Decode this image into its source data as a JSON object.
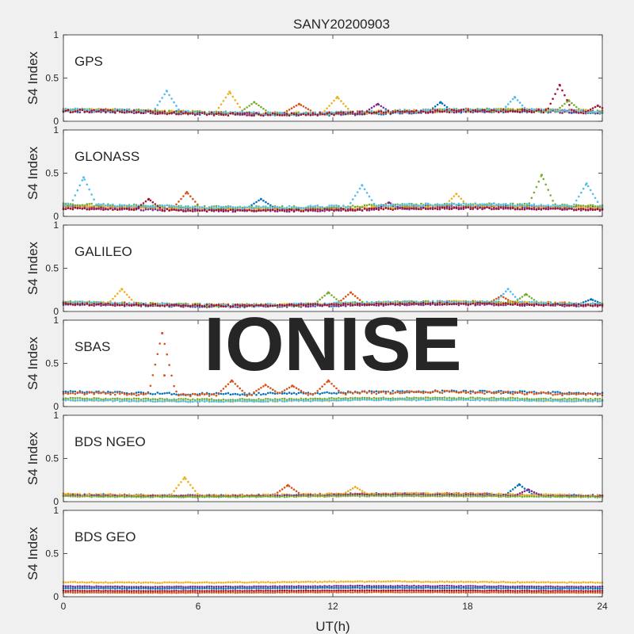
{
  "figure": {
    "title": "SANY20200903",
    "xlabel": "UT(h)",
    "x_ticks": [
      "0",
      "6",
      "12",
      "18",
      "24"
    ],
    "watermark": "IONISE",
    "colors": {
      "background": "#f0f0f0",
      "plot_bg": "#ffffff",
      "axis": "#262626",
      "watermark": "#d9d9d9"
    }
  },
  "chart_data": [
    {
      "type": "scatter",
      "label": "GPS",
      "ylabel": "S4 Index",
      "xlim": [
        0,
        24
      ],
      "ylim": [
        0,
        1
      ],
      "y_ticks": [
        "0",
        "0.5",
        "1"
      ],
      "grid": false,
      "series": [
        {
          "color": "#0072BD",
          "base": 0.1,
          "noise": 0.035,
          "spikes": [
            {
              "x": 16.8,
              "y": 0.22
            }
          ]
        },
        {
          "color": "#D95319",
          "base": 0.11,
          "noise": 0.035,
          "spikes": [
            {
              "x": 10.5,
              "y": 0.2
            }
          ]
        },
        {
          "color": "#EDB120",
          "base": 0.11,
          "noise": 0.035,
          "spikes": [
            {
              "x": 7.4,
              "y": 0.34
            },
            {
              "x": 12.2,
              "y": 0.28
            }
          ]
        },
        {
          "color": "#7E2F8E",
          "base": 0.1,
          "noise": 0.03,
          "spikes": [
            {
              "x": 14.0,
              "y": 0.2
            }
          ]
        },
        {
          "color": "#77AC30",
          "base": 0.11,
          "noise": 0.035,
          "spikes": [
            {
              "x": 8.5,
              "y": 0.22
            },
            {
              "x": 22.5,
              "y": 0.24
            }
          ]
        },
        {
          "color": "#4DBEEE",
          "base": 0.11,
          "noise": 0.035,
          "spikes": [
            {
              "x": 4.6,
              "y": 0.35
            },
            {
              "x": 20.1,
              "y": 0.28
            }
          ]
        },
        {
          "color": "#A2142F",
          "base": 0.1,
          "noise": 0.035,
          "spikes": [
            {
              "x": 22.1,
              "y": 0.42
            },
            {
              "x": 23.8,
              "y": 0.18
            }
          ]
        }
      ]
    },
    {
      "type": "scatter",
      "label": "GLONASS",
      "ylabel": "S4 Index",
      "xlim": [
        0,
        24
      ],
      "ylim": [
        0,
        1
      ],
      "y_ticks": [
        "0",
        "0.5",
        "1"
      ],
      "grid": false,
      "series": [
        {
          "color": "#0072BD",
          "base": 0.1,
          "noise": 0.03,
          "spikes": [
            {
              "x": 8.8,
              "y": 0.2
            }
          ]
        },
        {
          "color": "#D95319",
          "base": 0.1,
          "noise": 0.03,
          "spikes": [
            {
              "x": 5.5,
              "y": 0.28
            }
          ]
        },
        {
          "color": "#EDB120",
          "base": 0.1,
          "noise": 0.03,
          "spikes": [
            {
              "x": 17.5,
              "y": 0.26
            }
          ]
        },
        {
          "color": "#7E2F8E",
          "base": 0.08,
          "noise": 0.025,
          "spikes": [
            {
              "x": 14.5,
              "y": 0.16
            }
          ]
        },
        {
          "color": "#77AC30",
          "base": 0.12,
          "noise": 0.03,
          "spikes": [
            {
              "x": 21.3,
              "y": 0.48
            }
          ]
        },
        {
          "color": "#4DBEEE",
          "base": 0.12,
          "noise": 0.03,
          "spikes": [
            {
              "x": 0.9,
              "y": 0.45
            },
            {
              "x": 13.3,
              "y": 0.36
            },
            {
              "x": 23.3,
              "y": 0.38
            }
          ]
        },
        {
          "color": "#A2142F",
          "base": 0.08,
          "noise": 0.025,
          "spikes": [
            {
              "x": 3.8,
              "y": 0.2
            }
          ]
        }
      ]
    },
    {
      "type": "scatter",
      "label": "GALILEO",
      "ylabel": "S4 Index",
      "xlim": [
        0,
        24
      ],
      "ylim": [
        0,
        1
      ],
      "y_ticks": [
        "0",
        "0.5",
        "1"
      ],
      "grid": false,
      "series": [
        {
          "color": "#0072BD",
          "base": 0.08,
          "noise": 0.03,
          "spikes": [
            {
              "x": 23.5,
              "y": 0.14
            }
          ]
        },
        {
          "color": "#D95319",
          "base": 0.09,
          "noise": 0.03,
          "spikes": [
            {
              "x": 12.8,
              "y": 0.22
            },
            {
              "x": 19.5,
              "y": 0.18
            }
          ]
        },
        {
          "color": "#EDB120",
          "base": 0.09,
          "noise": 0.03,
          "spikes": [
            {
              "x": 2.6,
              "y": 0.26
            }
          ]
        },
        {
          "color": "#7E2F8E",
          "base": 0.07,
          "noise": 0.02,
          "spikes": []
        },
        {
          "color": "#77AC30",
          "base": 0.09,
          "noise": 0.03,
          "spikes": [
            {
              "x": 11.8,
              "y": 0.22
            },
            {
              "x": 20.6,
              "y": 0.2
            }
          ]
        },
        {
          "color": "#4DBEEE",
          "base": 0.09,
          "noise": 0.03,
          "spikes": [
            {
              "x": 19.8,
              "y": 0.26
            }
          ]
        },
        {
          "color": "#A2142F",
          "base": 0.08,
          "noise": 0.02,
          "spikes": []
        }
      ]
    },
    {
      "type": "scatter",
      "label": "SBAS",
      "ylabel": "S4 Index",
      "xlim": [
        0,
        24
      ],
      "ylim": [
        0,
        1
      ],
      "y_ticks": [
        "0",
        "0.5",
        "1"
      ],
      "grid": false,
      "series": [
        {
          "color": "#0072BD",
          "base": 0.16,
          "noise": 0.025,
          "spikes": []
        },
        {
          "color": "#D95319",
          "base": 0.15,
          "noise": 0.03,
          "spikes": [
            {
              "x": 4.4,
              "y": 0.85
            },
            {
              "x": 4.5,
              "y": 0.36
            },
            {
              "x": 7.5,
              "y": 0.3
            },
            {
              "x": 9.0,
              "y": 0.25
            },
            {
              "x": 10.2,
              "y": 0.24
            },
            {
              "x": 11.8,
              "y": 0.3
            }
          ]
        },
        {
          "color": "#EDB120",
          "base": 0.07,
          "noise": 0.015,
          "spikes": []
        },
        {
          "color": "#77AC30",
          "base": 0.09,
          "noise": 0.015,
          "spikes": []
        },
        {
          "color": "#4DBEEE",
          "base": 0.07,
          "noise": 0.015,
          "spikes": []
        }
      ]
    },
    {
      "type": "scatter",
      "label": "BDS NGEO",
      "ylabel": "S4 Index",
      "xlim": [
        0,
        24
      ],
      "ylim": [
        0,
        1
      ],
      "y_ticks": [
        "0",
        "0.5",
        "1"
      ],
      "grid": false,
      "series": [
        {
          "color": "#0072BD",
          "base": 0.08,
          "noise": 0.02,
          "spikes": [
            {
              "x": 20.3,
              "y": 0.2
            }
          ]
        },
        {
          "color": "#D95319",
          "base": 0.08,
          "noise": 0.02,
          "spikes": [
            {
              "x": 10.0,
              "y": 0.19
            }
          ]
        },
        {
          "color": "#EDB120",
          "base": 0.08,
          "noise": 0.02,
          "spikes": [
            {
              "x": 5.4,
              "y": 0.28
            },
            {
              "x": 13.0,
              "y": 0.17
            }
          ]
        },
        {
          "color": "#7E2F8E",
          "base": 0.07,
          "noise": 0.015,
          "spikes": [
            {
              "x": 20.7,
              "y": 0.14
            }
          ]
        },
        {
          "color": "#77AC30",
          "base": 0.06,
          "noise": 0.01,
          "spikes": []
        }
      ]
    },
    {
      "type": "scatter",
      "label": "BDS GEO",
      "ylabel": "S4 Index",
      "xlim": [
        0,
        24
      ],
      "ylim": [
        0,
        1
      ],
      "y_ticks": [
        "0",
        "0.5",
        "1"
      ],
      "grid": false,
      "series": [
        {
          "color": "#EDB120",
          "base": 0.17,
          "noise": 0.01,
          "spikes": []
        },
        {
          "color": "#7E2F8E",
          "base": 0.12,
          "noise": 0.008,
          "spikes": []
        },
        {
          "color": "#0072BD",
          "base": 0.1,
          "noise": 0.006,
          "spikes": []
        },
        {
          "color": "#A2142F",
          "base": 0.07,
          "noise": 0.005,
          "spikes": []
        },
        {
          "color": "#D95319",
          "base": 0.05,
          "noise": 0.005,
          "spikes": []
        }
      ]
    }
  ]
}
